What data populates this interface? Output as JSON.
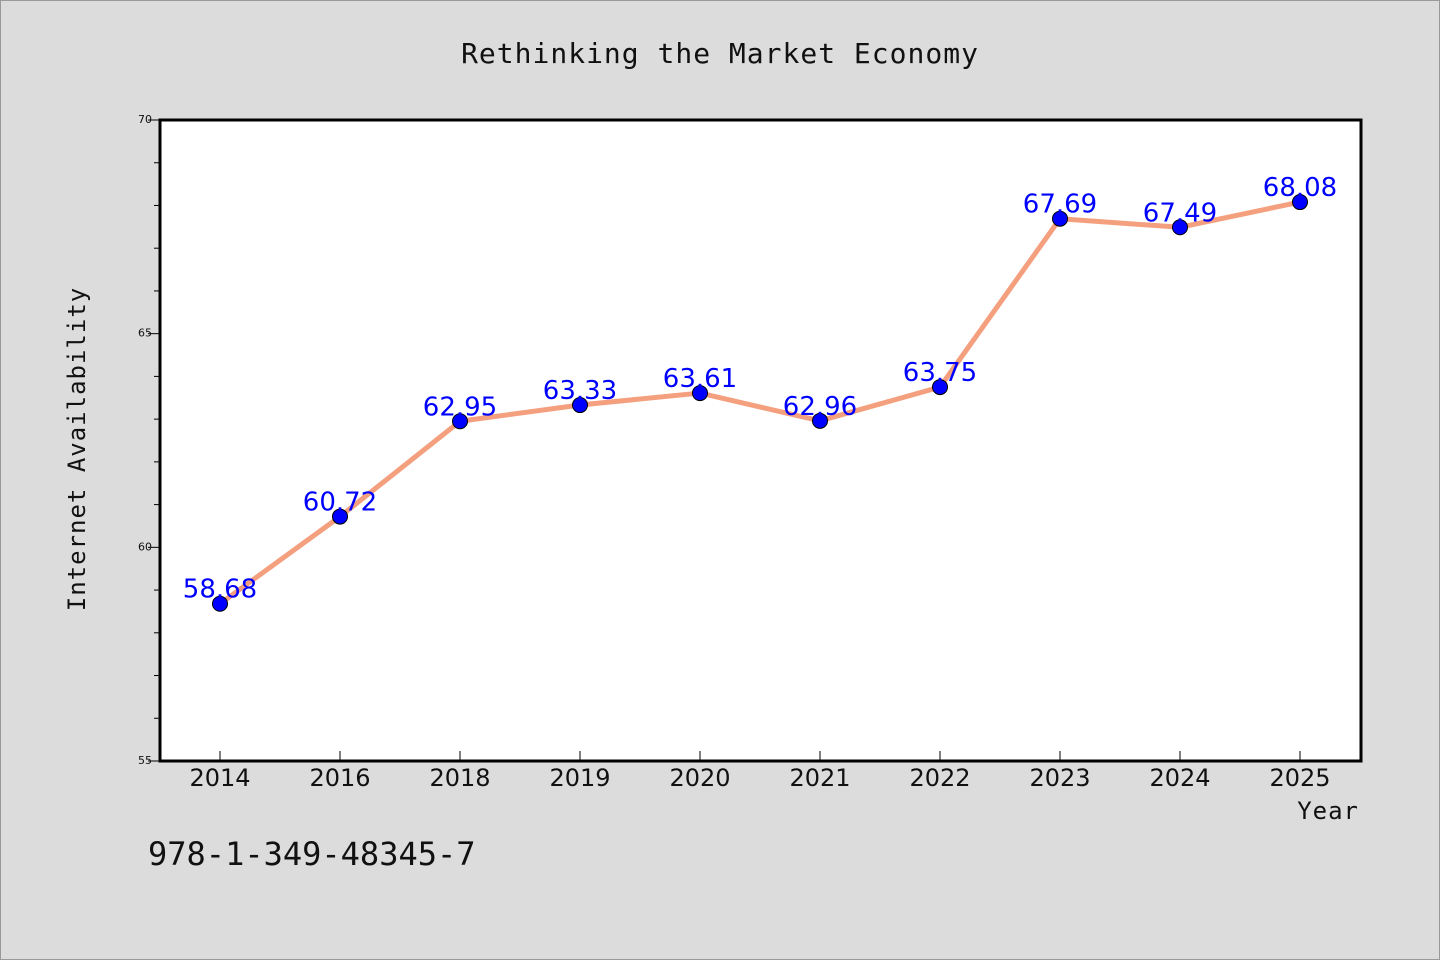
{
  "chart_data": {
    "type": "line",
    "title": "Rethinking the Market Economy",
    "xlabel": "Year",
    "ylabel": "Internet Availability",
    "categories": [
      "2014",
      "2016",
      "2018",
      "2019",
      "2020",
      "2021",
      "2022",
      "2023",
      "2024",
      "2025"
    ],
    "series": [
      {
        "values": [
          58.68,
          60.72,
          62.95,
          63.33,
          63.61,
          62.96,
          63.75,
          67.69,
          67.49,
          68.08
        ],
        "data_labels": [
          "58.68",
          "60.72",
          "62.95",
          "63.33",
          "63.61",
          "62.96",
          "63.75",
          "67.69",
          "67.49",
          "68.08"
        ]
      }
    ],
    "yticks": [
      "55",
      "60",
      "65",
      "70"
    ],
    "ylim": [
      55,
      70
    ],
    "grid": false,
    "line_color": "#f4a07f",
    "marker_color": "#0000ff",
    "label_color": "#0000ff"
  },
  "footer": {
    "isbn": "978-1-349-48345-7"
  }
}
